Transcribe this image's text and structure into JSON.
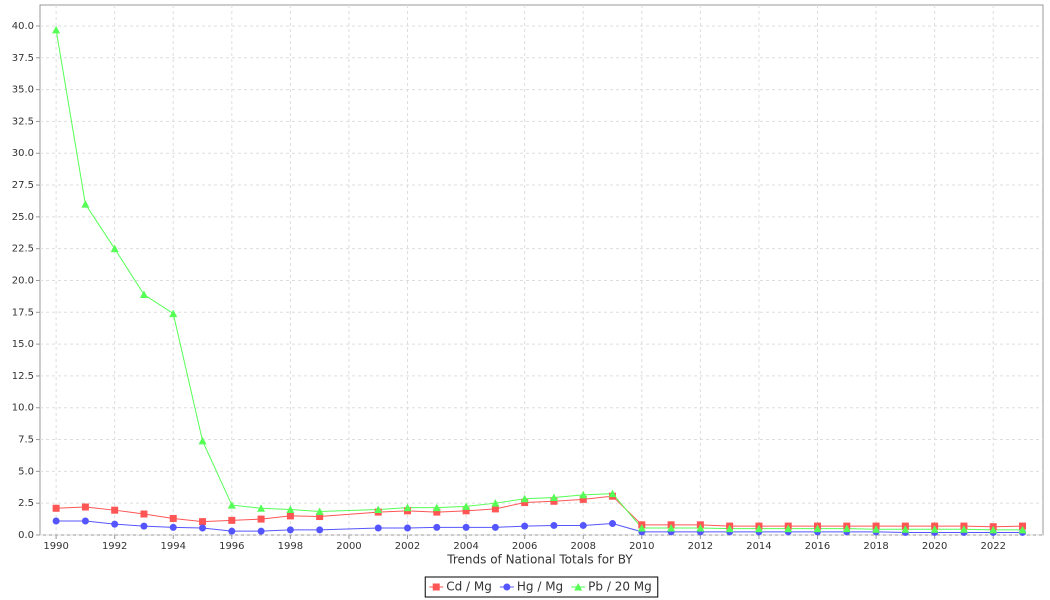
{
  "chart_data": {
    "type": "line",
    "x_label": "Trends of National Totals for BY",
    "x": [
      1990,
      1991,
      1992,
      1993,
      1994,
      1995,
      1996,
      1997,
      1998,
      1999,
      2001,
      2002,
      2003,
      2004,
      2005,
      2006,
      2007,
      2008,
      2009,
      2010,
      2011,
      2012,
      2013,
      2014,
      2015,
      2016,
      2017,
      2018,
      2019,
      2020,
      2021,
      2022,
      2023
    ],
    "series": [
      {
        "name": "Cd / Mg",
        "color": "#ff5555",
        "marker": "square",
        "values": [
          2.1,
          2.2,
          1.95,
          1.65,
          1.3,
          1.05,
          1.15,
          1.25,
          1.5,
          1.45,
          1.8,
          1.9,
          1.8,
          1.9,
          2.05,
          2.55,
          2.65,
          2.8,
          3.05,
          0.8,
          0.8,
          0.8,
          0.7,
          0.7,
          0.7,
          0.7,
          0.7,
          0.7,
          0.7,
          0.7,
          0.7,
          0.65,
          0.7
        ]
      },
      {
        "name": "Hg / Mg",
        "color": "#5555ff",
        "marker": "circle",
        "values": [
          1.1,
          1.1,
          0.85,
          0.7,
          0.6,
          0.55,
          0.3,
          0.3,
          0.4,
          0.4,
          0.55,
          0.55,
          0.6,
          0.6,
          0.6,
          0.7,
          0.75,
          0.75,
          0.9,
          0.25,
          0.25,
          0.25,
          0.25,
          0.25,
          0.25,
          0.25,
          0.25,
          0.25,
          0.2,
          0.2,
          0.2,
          0.2,
          0.2
        ]
      },
      {
        "name": "Pb / 20 Mg",
        "color": "#55ff55",
        "marker": "triangle",
        "values": [
          39.7,
          26.0,
          22.5,
          18.9,
          17.4,
          7.4,
          2.35,
          2.1,
          2.0,
          1.85,
          2.0,
          2.15,
          2.15,
          2.25,
          2.5,
          2.85,
          2.95,
          3.15,
          3.25,
          0.55,
          0.55,
          0.55,
          0.5,
          0.5,
          0.5,
          0.5,
          0.5,
          0.45,
          0.45,
          0.45,
          0.45,
          0.4,
          0.4
        ]
      }
    ],
    "xlim": [
      1989.45,
      2023.7
    ],
    "xticks": [
      1990,
      1992,
      1994,
      1996,
      1998,
      2000,
      2002,
      2004,
      2006,
      2008,
      2010,
      2012,
      2014,
      2016,
      2018,
      2020,
      2022
    ],
    "ylim": [
      0,
      41.65
    ],
    "yticks": [
      {
        "value": 0,
        "label": "0.0"
      },
      {
        "value": 2.5,
        "label": "2.5"
      },
      {
        "value": 5,
        "label": "5.0"
      },
      {
        "value": 7.5,
        "label": "7.5"
      },
      {
        "value": 10,
        "label": "10.0"
      },
      {
        "value": 12.5,
        "label": "12.5"
      },
      {
        "value": 15,
        "label": "15.0"
      },
      {
        "value": 17.5,
        "label": "17.5"
      },
      {
        "value": 20,
        "label": "20.0"
      },
      {
        "value": 22.5,
        "label": "22.5"
      },
      {
        "value": 25,
        "label": "25.0"
      },
      {
        "value": 27.5,
        "label": "27.5"
      },
      {
        "value": 30,
        "label": "30.0"
      },
      {
        "value": 32.5,
        "label": "32.5"
      },
      {
        "value": 35,
        "label": "35.0"
      },
      {
        "value": 37.5,
        "label": "37.5"
      },
      {
        "value": 40,
        "label": "40.0"
      }
    ],
    "grid": true,
    "legend": "bottom"
  }
}
